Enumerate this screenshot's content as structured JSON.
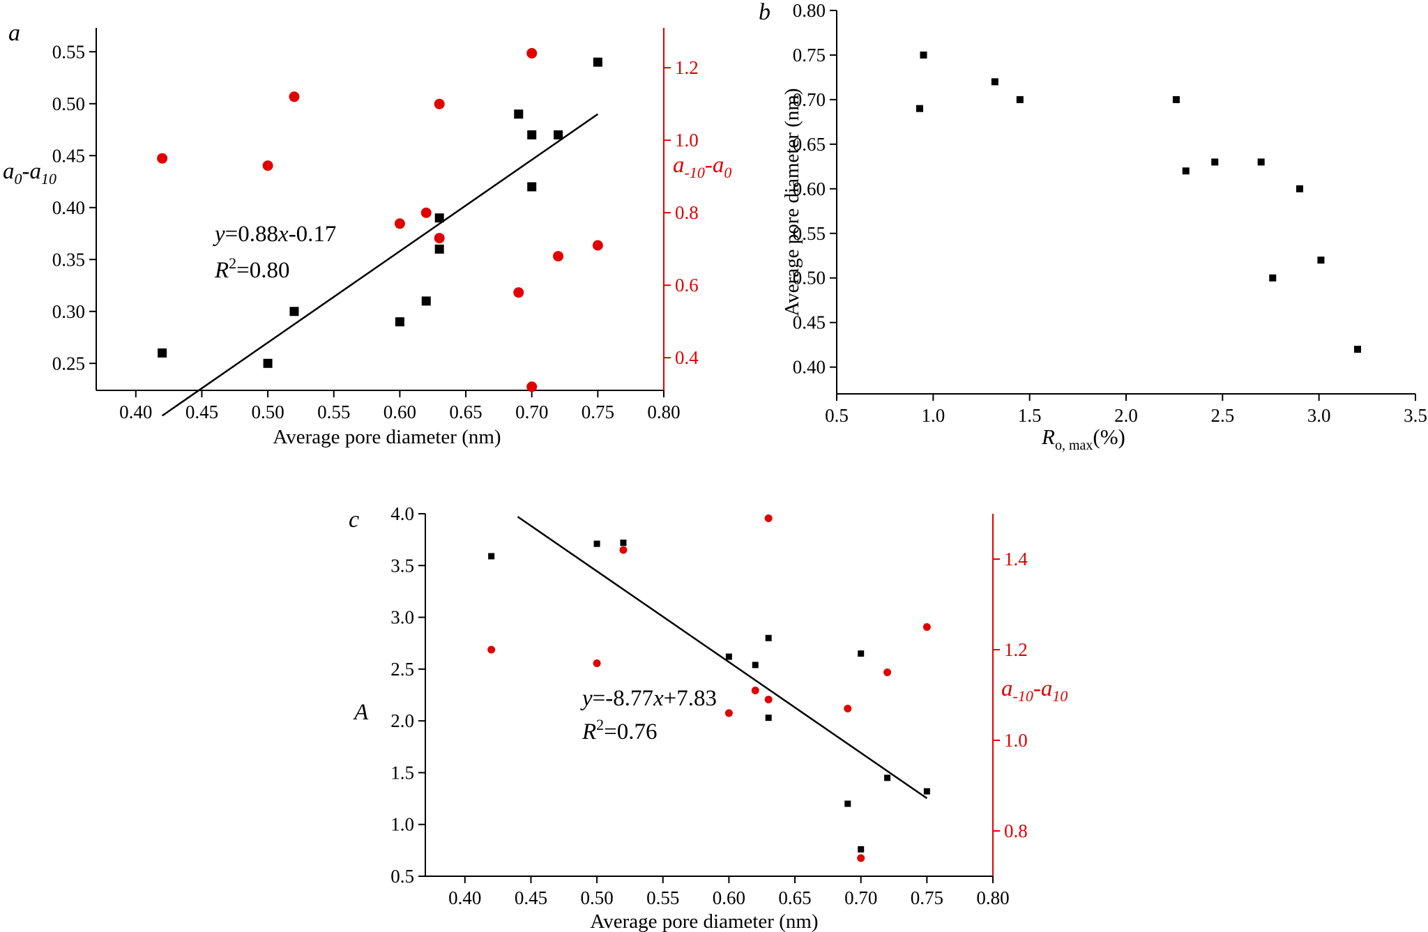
{
  "chart_data": [
    {
      "panel": "a",
      "type": "scatter",
      "xlabel": "Average pore diameter (nm)",
      "xlim": [
        0.37,
        0.8
      ],
      "xticks": [
        "0.40",
        "0.45",
        "0.50",
        "0.55",
        "0.60",
        "0.65",
        "0.70",
        "0.75",
        "0.80"
      ],
      "ylabel_left": {
        "base1": "a",
        "sub1": "0",
        "sep": "-",
        "base2": "a",
        "sub2": "10"
      },
      "ylim_left": [
        0.224,
        0.573
      ],
      "yticks_left": [
        "0.25",
        "0.30",
        "0.35",
        "0.40",
        "0.45",
        "0.50",
        "0.55"
      ],
      "ylabel_right": {
        "base1": "a",
        "sub1": "-10",
        "sep": "-",
        "base2": "a",
        "sub2": "0"
      },
      "ylim_right": [
        0.31,
        1.31
      ],
      "yticks_right": [
        "0.4",
        "0.6",
        "0.8",
        "1.0",
        "1.2"
      ],
      "series": [
        {
          "name": "a0-a10",
          "axis": "left",
          "marker": "square",
          "color": "#000000",
          "x": [
            0.42,
            0.5,
            0.52,
            0.6,
            0.62,
            0.63,
            0.63,
            0.69,
            0.7,
            0.7,
            0.72,
            0.75
          ],
          "y": [
            0.26,
            0.25,
            0.3,
            0.29,
            0.31,
            0.36,
            0.39,
            0.49,
            0.47,
            0.42,
            0.47,
            0.54
          ]
        },
        {
          "name": "a-10-a0",
          "axis": "right",
          "marker": "circle",
          "color": "#e00000",
          "x": [
            0.42,
            0.5,
            0.52,
            0.6,
            0.62,
            0.63,
            0.63,
            0.69,
            0.7,
            0.7,
            0.72,
            0.75
          ],
          "y": [
            0.95,
            0.93,
            1.12,
            0.77,
            0.8,
            0.73,
            1.1,
            0.58,
            1.24,
            0.32,
            0.68,
            0.71
          ]
        }
      ],
      "fit": {
        "slope": 0.88,
        "intercept": -0.17,
        "x_range": [
          0.42,
          0.75
        ]
      },
      "equation": {
        "y": "y",
        "rhs": "=0.88",
        "x": "x",
        "tail": "-0.17",
        "R": "R",
        "sup": "2",
        "r2": "=0.80"
      }
    },
    {
      "panel": "b",
      "type": "scatter",
      "xlabel": {
        "base": "R",
        "sub": "o, max",
        "tail": "(%)"
      },
      "xlim": [
        0.5,
        3.5
      ],
      "xticks": [
        "0.5",
        "1.0",
        "1.5",
        "2.0",
        "2.5",
        "3.0",
        "3.5"
      ],
      "ylabel": "Average pore diameter (nm)",
      "ylim": [
        0.37,
        0.8
      ],
      "yticks": [
        "0.40",
        "0.45",
        "0.50",
        "0.55",
        "0.60",
        "0.65",
        "0.70",
        "0.75",
        "0.80"
      ],
      "series": [
        {
          "name": "pore diameter",
          "marker": "square",
          "color": "#000000",
          "x": [
            0.93,
            0.95,
            1.32,
            1.45,
            2.26,
            2.31,
            2.46,
            2.7,
            2.76,
            2.9,
            3.01,
            3.2
          ],
          "y": [
            0.69,
            0.75,
            0.72,
            0.7,
            0.7,
            0.62,
            0.63,
            0.63,
            0.5,
            0.6,
            0.52,
            0.42
          ]
        }
      ]
    },
    {
      "panel": "c",
      "type": "scatter",
      "xlabel": "Average pore diameter (nm)",
      "xlim": [
        0.37,
        0.8
      ],
      "xticks": [
        "0.40",
        "0.45",
        "0.50",
        "0.55",
        "0.60",
        "0.65",
        "0.70",
        "0.75",
        "0.80"
      ],
      "ylabel_left": "A",
      "ylim_left": [
        0.5,
        4.0
      ],
      "yticks_left": [
        "0.5",
        "1.0",
        "1.5",
        "2.0",
        "2.5",
        "3.0",
        "3.5",
        "4.0"
      ],
      "ylabel_right": {
        "base1": "a",
        "sub1": "-10",
        "sep": "-",
        "base2": "a",
        "sub2": "10"
      },
      "ylim_right": [
        0.7,
        1.5
      ],
      "yticks_right": [
        "0.8",
        "1.0",
        "1.2",
        "1.4"
      ],
      "series": [
        {
          "name": "A",
          "axis": "left",
          "marker": "square",
          "color": "#000000",
          "x": [
            0.42,
            0.5,
            0.52,
            0.6,
            0.62,
            0.63,
            0.63,
            0.69,
            0.7,
            0.7,
            0.72,
            0.75
          ],
          "y": [
            3.59,
            3.71,
            3.72,
            2.62,
            2.54,
            2.8,
            2.03,
            1.2,
            2.65,
            0.76,
            1.45,
            1.32
          ]
        },
        {
          "name": "a-10-a10",
          "axis": "right",
          "marker": "circle",
          "color": "#e00000",
          "x": [
            0.42,
            0.5,
            0.52,
            0.6,
            0.62,
            0.63,
            0.63,
            0.69,
            0.7,
            0.72,
            0.75
          ],
          "y": [
            1.2,
            1.17,
            1.42,
            1.06,
            1.11,
            1.49,
            1.09,
            1.07,
            0.74,
            1.15,
            1.25
          ]
        }
      ],
      "fit": {
        "slope": -8.77,
        "intercept": 7.83,
        "x_range": [
          0.44,
          0.75
        ]
      },
      "equation": {
        "y": "y",
        "rhs": "=-8.77",
        "x": "x",
        "tail": "+7.83",
        "R": "R",
        "sup": "2",
        "r2": "=0.76"
      }
    }
  ]
}
